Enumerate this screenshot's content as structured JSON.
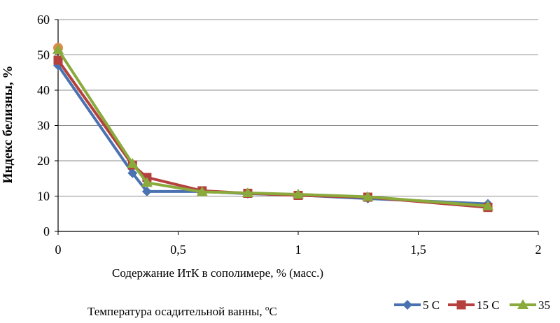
{
  "chart_data": {
    "type": "line",
    "xlabel": "Содержание ИтК в сополимере, % (масс.)",
    "ylabel": "Индекс белизны, %",
    "xlim": [
      0,
      2
    ],
    "ylim": [
      0,
      60
    ],
    "xticks": [
      "0",
      "0,5",
      "1",
      "1,5",
      "2"
    ],
    "yticks": [
      "0",
      "10",
      "20",
      "30",
      "40",
      "50",
      "60"
    ],
    "grid": "horizontal",
    "legend": {
      "title_prefix": "Температура осадительной ванны, ",
      "title_suffix_super": "o",
      "title_suffix_unit": "C",
      "placement": "bottom"
    },
    "series": [
      {
        "name": "5 С",
        "color": "#4a72b0",
        "marker": "diamond",
        "x": [
          0,
          0.31,
          0.37,
          0.6,
          0.79,
          1.0,
          1.29,
          1.79
        ],
        "y": [
          47,
          16.5,
          11.3,
          11.3,
          10.7,
          10.3,
          9.3,
          7.8
        ]
      },
      {
        "name": "15 С",
        "color": "#b5413e",
        "marker": "square",
        "x": [
          0,
          0.31,
          0.37,
          0.6,
          0.79,
          1.0,
          1.29,
          1.79
        ],
        "y": [
          48.5,
          18.8,
          15.3,
          11.5,
          10.8,
          10.2,
          9.7,
          6.8
        ]
      },
      {
        "name": "35",
        "color": "#8aaa3c",
        "marker": "triangle",
        "x": [
          0,
          0.31,
          0.37,
          0.6,
          0.79,
          1.0,
          1.29,
          1.79
        ],
        "y": [
          51.5,
          19.2,
          13.8,
          11.2,
          10.9,
          10.5,
          9.8,
          7.2
        ]
      }
    ],
    "extra_marker": {
      "series": "15 С",
      "x": 0,
      "y": 52,
      "color": "#e08a4a"
    }
  }
}
